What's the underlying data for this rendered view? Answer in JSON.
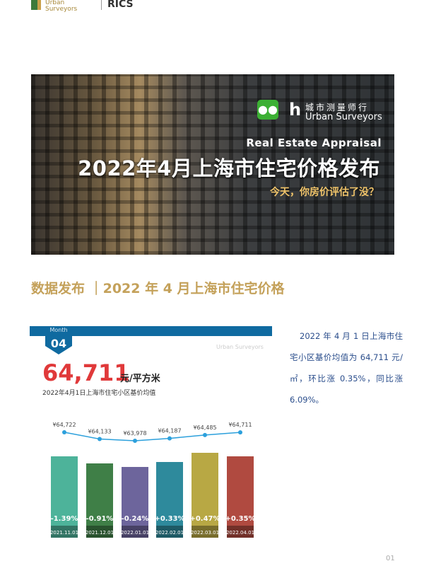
{
  "header": {
    "logo_text_1": "Urban",
    "logo_text_2": "Surveyors",
    "partner_logo": "RICS"
  },
  "banner": {
    "brand_cn": "城市测量师行",
    "brand_en": "Urban Surveyors",
    "en_title": "Real Estate Appraisal",
    "cn_title": "2022年4月上海市住宅价格发布",
    "subtitle": "今天，你房价评估了没？",
    "icon": "wechat-icon"
  },
  "section_heading": "数据发布 ｜2022 年 4 月上海市住宅价格",
  "card": {
    "month_label": "Month",
    "month": "04",
    "price": "64,711",
    "unit": "元/平方米",
    "caption": "2022年4月1日上海市住宅小区基价均值",
    "watermark": "Urban Surveyors"
  },
  "description": "2022 年 4 月 1 日上海市住宅小区基价均值为 64,711 元/㎡，环比涨 0.35%，同比涨 6.09%。",
  "chart_data": {
    "type": "bar",
    "categories": [
      "2021.11.01",
      "2021.12.01",
      "2022.01.01",
      "2022.02.01",
      "2022.03.01",
      "2022.04.01"
    ],
    "price_labels": [
      "¥64,722",
      "¥64,133",
      "¥63,978",
      "¥64,187",
      "¥64,485",
      "¥64,711"
    ],
    "prices": [
      64722,
      64133,
      63978,
      64187,
      64485,
      64711
    ],
    "change_labels": [
      "-1.39%",
      "-0.91%",
      "-0.24%",
      "+0.33%",
      "+0.47%",
      "+0.35%"
    ],
    "changes": [
      -1.39,
      -0.91,
      -0.24,
      0.33,
      0.47,
      0.35
    ],
    "colors": [
      "#4db39a",
      "#3f7f47",
      "#6d659c",
      "#2e8a9c",
      "#b8a844",
      "#b04a40"
    ],
    "line_color": "#2ca0dc"
  },
  "page_number": "01"
}
